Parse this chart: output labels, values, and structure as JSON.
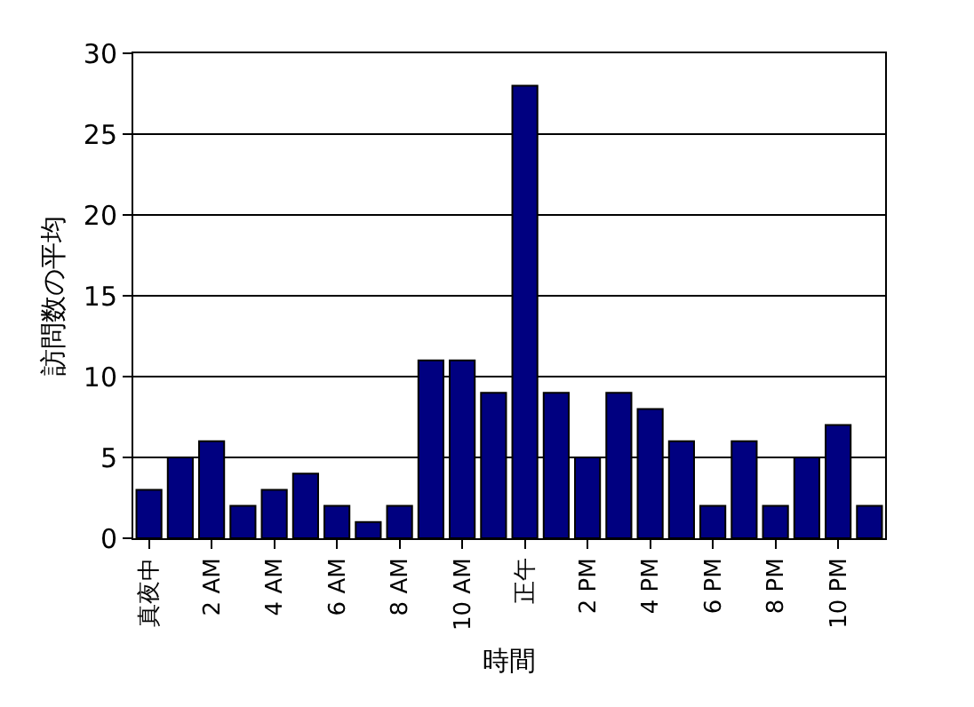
{
  "chart_data": {
    "type": "bar",
    "xlabel": "時間",
    "ylabel": "訪問数の平均",
    "categories": [
      "真夜中",
      null,
      "2 AM",
      null,
      "4 AM",
      null,
      "6 AM",
      null,
      "8 AM",
      null,
      "10 AM",
      null,
      "正午",
      null,
      "2 PM",
      null,
      "4 PM",
      null,
      "6 PM",
      null,
      "8 PM",
      null,
      "10 PM",
      null
    ],
    "values": [
      3,
      5,
      6,
      2,
      3,
      4,
      2,
      1,
      2,
      11,
      11,
      9,
      28,
      9,
      5,
      9,
      8,
      6,
      2,
      6,
      2,
      5,
      7,
      2
    ],
    "color": "#000080",
    "ylim": [
      0,
      30
    ],
    "yticks": [
      0,
      5,
      10,
      15,
      20,
      25,
      30
    ],
    "grid": "y"
  }
}
